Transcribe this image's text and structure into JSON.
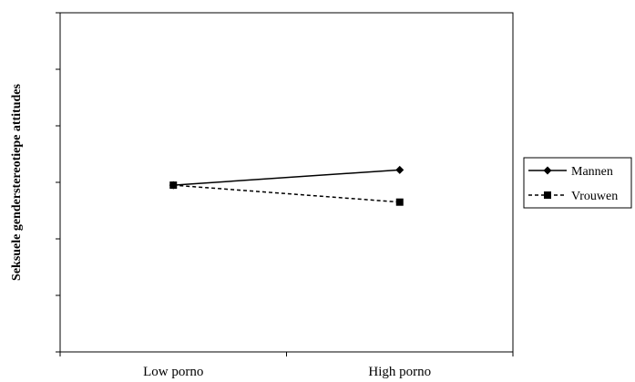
{
  "chart_data": {
    "type": "line",
    "title": "",
    "xlabel": "",
    "ylabel": "Seksuele genderstereotiepe attitudes",
    "categories": [
      "Low porno",
      "High porno"
    ],
    "ylim": [
      0,
      6
    ],
    "y_ticks": 6,
    "grid": false,
    "legend_position": "right",
    "series": [
      {
        "name": "Mannen",
        "values": [
          2.95,
          3.22
        ],
        "marker": "diamond",
        "line": "solid",
        "color": "#000000"
      },
      {
        "name": "Vrouwen",
        "values": [
          2.95,
          2.65
        ],
        "marker": "square",
        "line": "dashed",
        "color": "#000000"
      }
    ]
  }
}
